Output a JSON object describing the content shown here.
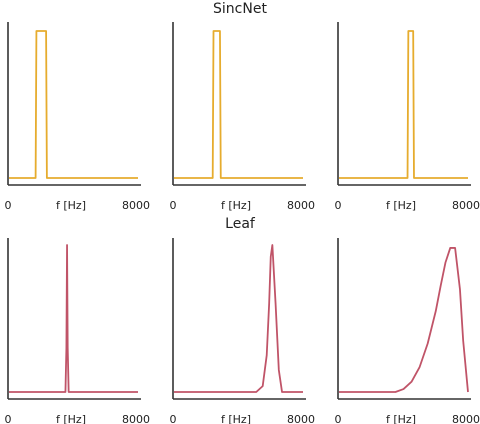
{
  "chart_data": [
    {
      "type": "line",
      "title": "SincNet",
      "xlabel": "f [Hz]",
      "x_tick_labels": [
        "0",
        "8000"
      ],
      "xlim": [
        0,
        8000
      ],
      "ylim": [
        0,
        1
      ],
      "color": "#e6ac2e",
      "grid": false,
      "panels": [
        {
          "x": [
            0,
            1650,
            1700,
            2300,
            2350,
            8000
          ],
          "y": [
            0,
            0,
            1,
            1,
            0,
            0
          ]
        },
        {
          "x": [
            0,
            2400,
            2450,
            2850,
            2900,
            8000
          ],
          "y": [
            0,
            0,
            1,
            1,
            0,
            0
          ]
        },
        {
          "x": [
            0,
            4250,
            4300,
            4600,
            4650,
            8000
          ],
          "y": [
            0,
            0,
            1,
            1,
            0,
            0
          ]
        }
      ]
    },
    {
      "type": "line",
      "title": "Leaf",
      "xlabel": "f [Hz]",
      "x_tick_labels": [
        "0",
        "8000"
      ],
      "xlim": [
        0,
        8000
      ],
      "ylim": [
        0,
        1
      ],
      "color": "#c05468",
      "grid": false,
      "panels": [
        {
          "x": [
            0,
            3500,
            3560,
            3600,
            3640,
            3700,
            8000
          ],
          "y": [
            0,
            0,
            0.3,
            1,
            0.3,
            0,
            0
          ]
        },
        {
          "x": [
            0,
            5100,
            5500,
            5750,
            5900,
            6000,
            6100,
            6300,
            6500,
            6700,
            8000
          ],
          "y": [
            0,
            0,
            0.04,
            0.25,
            0.6,
            0.92,
            1,
            0.6,
            0.15,
            0,
            0
          ]
        },
        {
          "x": [
            0,
            3500,
            4000,
            4500,
            5000,
            5500,
            6000,
            6300,
            6600,
            6900,
            7200,
            7500,
            7700,
            8000
          ],
          "y": [
            0,
            0,
            0.02,
            0.07,
            0.17,
            0.33,
            0.55,
            0.72,
            0.88,
            0.98,
            0.98,
            0.7,
            0.35,
            0
          ]
        }
      ]
    }
  ]
}
